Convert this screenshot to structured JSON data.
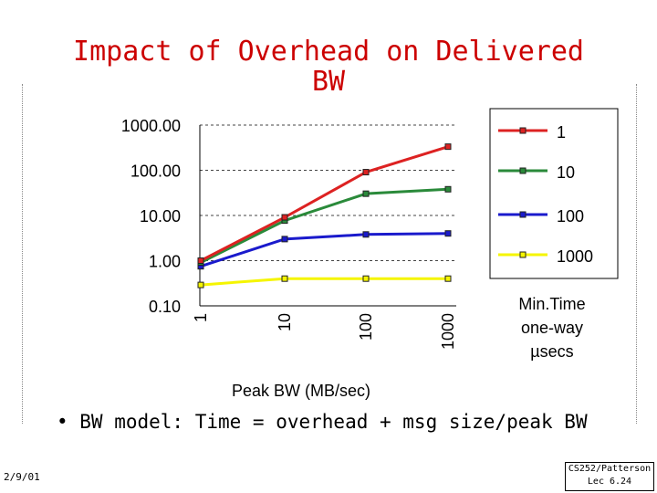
{
  "slide": {
    "title_line1": "Impact of Overhead on Delivered",
    "title_line2": "BW",
    "bullet": "• BW model: Time = overhead + msg size/peak BW",
    "footer_date": "2/9/01",
    "footer_course": "CS252/Patterson",
    "footer_lecture": "Lec 6.24",
    "note_line1": "Min.Time",
    "note_line2": "one-way",
    "note_line3": "µsecs"
  },
  "chart_data": {
    "type": "line",
    "title": "",
    "xlabel": "Peak BW (MB/sec)",
    "ylabel": "",
    "x": [
      1,
      10,
      100,
      1000
    ],
    "x_tick_labels": [
      "1",
      "10",
      "100",
      "1000"
    ],
    "y_scale": "log",
    "ylim": [
      0.1,
      1000
    ],
    "y_tick_labels": [
      "1000.00",
      "100.00",
      "10.00",
      "1.00",
      "0.10"
    ],
    "y_ticks": [
      1000,
      100,
      10,
      1,
      0.1
    ],
    "grid": true,
    "legend_position": "right",
    "series": [
      {
        "name": "1",
        "color": "#dd2222",
        "values": [
          1.0,
          9.1,
          90.9,
          333.0
        ]
      },
      {
        "name": "10",
        "color": "#2a8a3a",
        "values": [
          0.91,
          7.7,
          30.3,
          38.0
        ]
      },
      {
        "name": "100",
        "color": "#1a1acc",
        "values": [
          0.75,
          3.0,
          3.8,
          4.0
        ]
      },
      {
        "name": "1000",
        "color": "#f5f500",
        "values": [
          0.29,
          0.4,
          0.4,
          0.4
        ]
      }
    ]
  }
}
